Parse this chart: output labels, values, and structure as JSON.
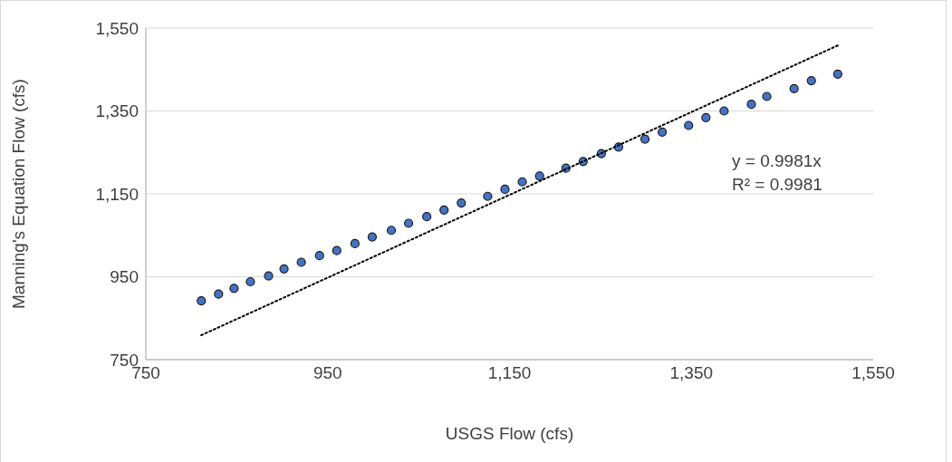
{
  "chart_data": {
    "type": "scatter",
    "xlabel": "USGS Flow (cfs)",
    "ylabel": "Manning's Equation Flow (cfs)",
    "xlim": [
      750,
      1550
    ],
    "xticks": [
      {
        "value": 750,
        "label": "750"
      },
      {
        "value": 950,
        "label": "950"
      },
      {
        "value": 1150,
        "label": "1,150"
      },
      {
        "value": 1350,
        "label": "1,350"
      },
      {
        "value": 1550,
        "label": "1,550"
      }
    ],
    "ylim": [
      750,
      1550
    ],
    "yticks": [
      {
        "value": 750,
        "label": "750"
      },
      {
        "value": 950,
        "label": "950"
      },
      {
        "value": 1150,
        "label": "1,150"
      },
      {
        "value": 1350,
        "label": "1,350"
      },
      {
        "value": 1550,
        "label": "1,550"
      }
    ],
    "grid": "y",
    "legend": false,
    "marker": "circle",
    "annotations": [
      "y = 0.9981x",
      "R² = 0.9981"
    ],
    "series": [
      {
        "color": "#4472c4",
        "x": [
          811,
          830,
          847,
          865,
          885,
          902,
          921,
          941,
          960,
          980,
          999,
          1020,
          1039,
          1059,
          1078,
          1097,
          1126,
          1145,
          1164,
          1183,
          1212,
          1231,
          1251,
          1270,
          1299,
          1318,
          1347,
          1366,
          1386,
          1416,
          1433,
          1463,
          1482,
          1511
        ],
        "values": [
          892,
          908,
          922,
          938,
          952,
          969,
          985,
          1001,
          1013,
          1030,
          1046,
          1062,
          1079,
          1095,
          1111,
          1128,
          1144,
          1161,
          1179,
          1193,
          1212,
          1228,
          1247,
          1263,
          1282,
          1299,
          1315,
          1334,
          1350,
          1366,
          1385,
          1404,
          1423,
          1439
        ]
      },
      {
        "type": "line",
        "color": "#000000",
        "marker": "none",
        "line_style": "dotted",
        "x": [
          811,
          1511
        ],
        "values": [
          809,
          1508
        ]
      }
    ]
  }
}
